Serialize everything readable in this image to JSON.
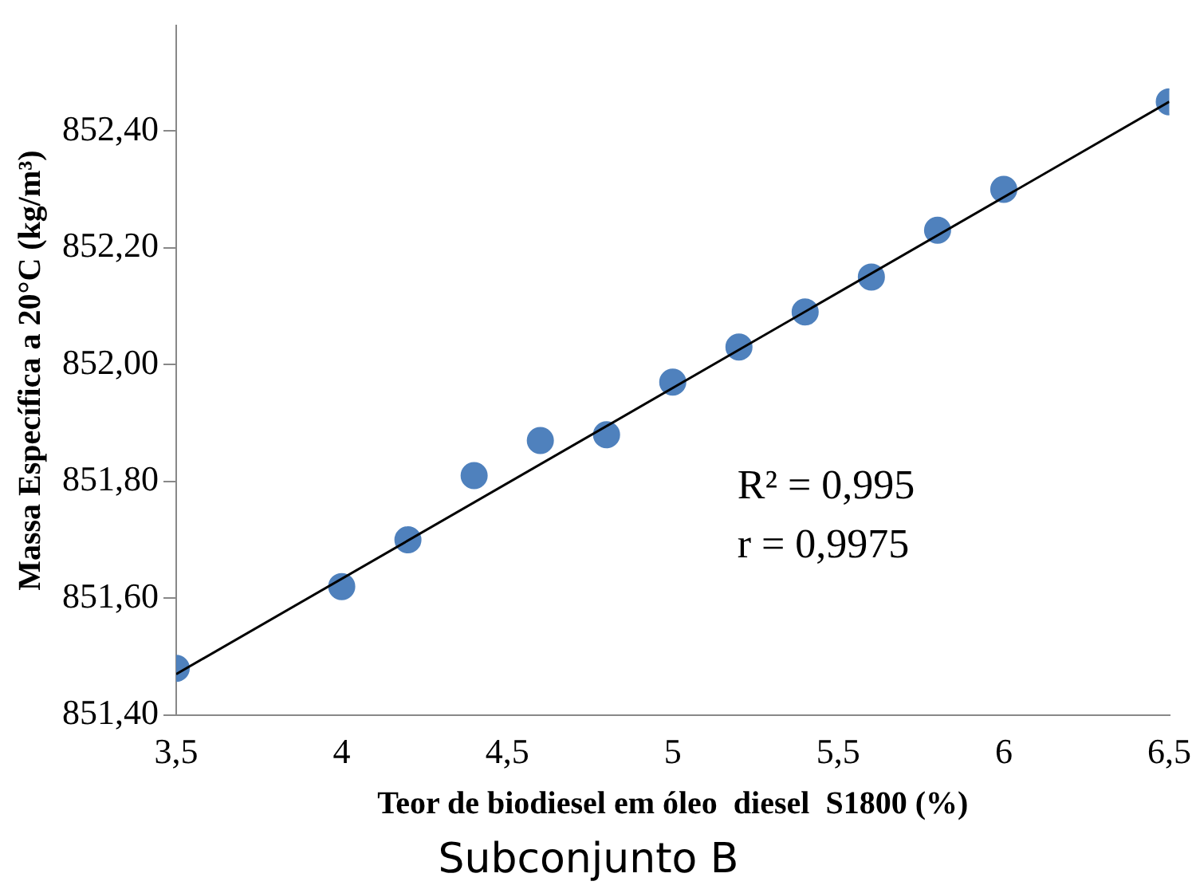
{
  "chart_data": {
    "type": "scatter",
    "title": "Subconjunto B",
    "xlabel": "Teor de biodiesel em óleo  diesel  S1800 (%)",
    "ylabel": "Massa Específica a 20°C (kg/m³)",
    "annotations": [
      "R² = 0,995",
      "r = 0,9975"
    ],
    "marker": "circle",
    "grid": false,
    "legend": false,
    "xlim": [
      3.5,
      6.5
    ],
    "xticks": [
      {
        "value": 3.5,
        "label": "3,5"
      },
      {
        "value": 4,
        "label": "4"
      },
      {
        "value": 4.5,
        "label": "4,5"
      },
      {
        "value": 5,
        "label": "5"
      },
      {
        "value": 5.5,
        "label": "5,5"
      },
      {
        "value": 6,
        "label": "6"
      },
      {
        "value": 6.5,
        "label": "6,5"
      }
    ],
    "ylim": [
      851.4,
      852.58
    ],
    "yticks": [
      {
        "value": 851.4,
        "label": "851,40"
      },
      {
        "value": 851.6,
        "label": "851,60"
      },
      {
        "value": 851.8,
        "label": "851,80"
      },
      {
        "value": 852,
        "label": "852,00"
      },
      {
        "value": 852.2,
        "label": "852,20"
      },
      {
        "value": 852.4,
        "label": "852,40"
      }
    ],
    "series": [
      {
        "color": "#4f81bd",
        "x": [
          3.5,
          4,
          4.2,
          4.4,
          4.6,
          4.8,
          5,
          5.2,
          5.4,
          5.6,
          5.8,
          6,
          6.5
        ],
        "values": [
          851.48,
          851.62,
          851.7,
          851.81,
          851.87,
          851.88,
          851.97,
          852.03,
          852.09,
          852.15,
          852.23,
          852.3,
          852.45
        ]
      },
      {
        "type": "line",
        "color": "#000000",
        "marker": "none",
        "x": [
          3.5,
          6.5
        ],
        "values": [
          851.47,
          852.45
        ]
      }
    ]
  }
}
